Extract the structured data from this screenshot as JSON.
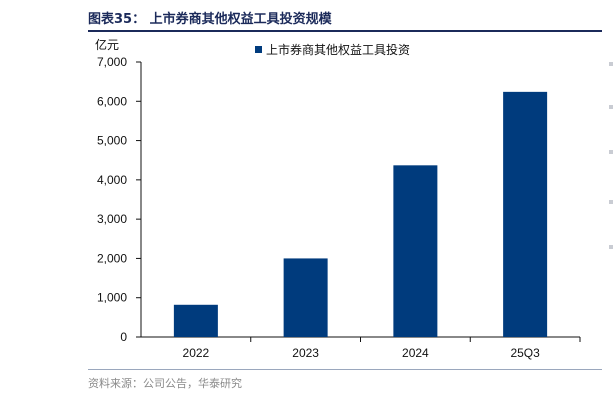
{
  "figure": {
    "title": "图表35： 上市券商其他权益工具投资规模",
    "source": "资料来源：公司公告，华泰研究"
  },
  "chart_data": {
    "type": "bar",
    "title": "",
    "xlabel": "",
    "ylabel": "亿元",
    "categories": [
      "2022",
      "2023",
      "2024",
      "25Q3"
    ],
    "series": [
      {
        "name": "上市券商其他权益工具投资",
        "values": [
          820,
          2000,
          4370,
          6240
        ],
        "color": "#003B7D"
      }
    ],
    "ylim": [
      0,
      7000
    ],
    "yticks": [
      0,
      1000,
      2000,
      3000,
      4000,
      5000,
      6000,
      7000
    ],
    "ytick_labels": [
      "0",
      "1,000",
      "2,000",
      "3,000",
      "4,000",
      "5,000",
      "6,000",
      "7,000"
    ],
    "grid": false,
    "legend": "top-center"
  }
}
